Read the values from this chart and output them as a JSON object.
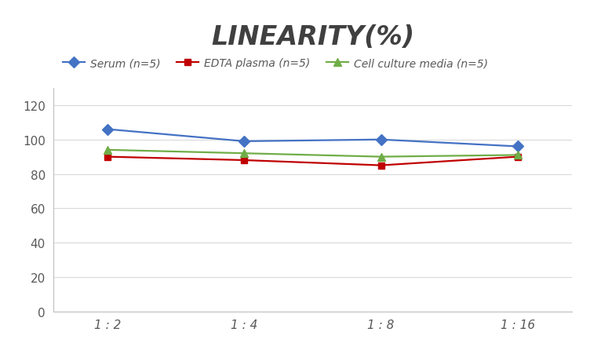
{
  "title": "LINEARITY(%)",
  "x_labels": [
    "1 : 2",
    "1 : 4",
    "1 : 8",
    "1 : 16"
  ],
  "x_positions": [
    0,
    1,
    2,
    3
  ],
  "series": [
    {
      "label": "Serum (n=5)",
      "values": [
        106,
        99,
        100,
        96
      ],
      "color": "#4472C4",
      "marker": "D",
      "markersize": 7,
      "linewidth": 1.6
    },
    {
      "label": "EDTA plasma (n=5)",
      "values": [
        90,
        88,
        85,
        90
      ],
      "color": "#C00000",
      "marker": "s",
      "markersize": 6,
      "linewidth": 1.6
    },
    {
      "label": "Cell culture media (n=5)",
      "values": [
        94,
        92,
        90,
        91
      ],
      "color": "#70AD47",
      "marker": "^",
      "markersize": 7,
      "linewidth": 1.6
    }
  ],
  "ylim": [
    0,
    130
  ],
  "yticks": [
    0,
    20,
    40,
    60,
    80,
    100,
    120
  ],
  "background_color": "#FFFFFF",
  "grid_color": "#D9D9D9",
  "title_fontsize": 24,
  "title_fontstyle": "italic",
  "title_fontweight": "bold",
  "legend_fontsize": 10,
  "tick_fontsize": 11,
  "tick_color": "#595959"
}
